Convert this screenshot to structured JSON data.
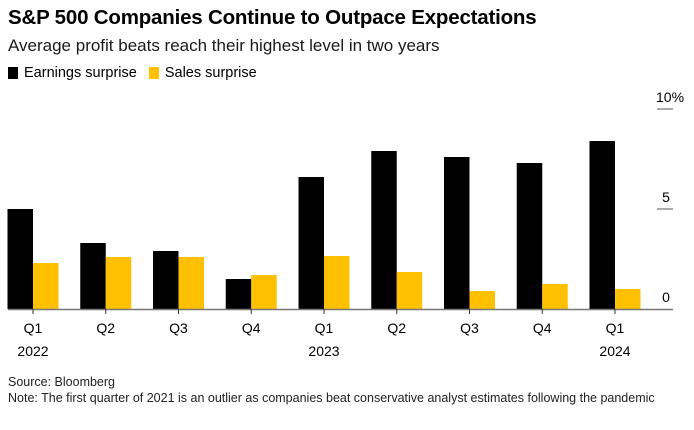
{
  "chart_data": {
    "type": "bar",
    "title": "S&P 500 Companies Continue to Outpace Expectations",
    "subtitle": "Average profit beats reach their highest level in two years",
    "categories": [
      "Q1 2022",
      "Q2 2022",
      "Q3 2022",
      "Q4 2022",
      "Q1 2023",
      "Q2 2023",
      "Q3 2023",
      "Q4 2023",
      "Q1 2024"
    ],
    "tick_labels": [
      {
        "quarter": "Q1",
        "year": "2022"
      },
      {
        "quarter": "Q2",
        "year": ""
      },
      {
        "quarter": "Q3",
        "year": ""
      },
      {
        "quarter": "Q4",
        "year": ""
      },
      {
        "quarter": "Q1",
        "year": "2023"
      },
      {
        "quarter": "Q2",
        "year": ""
      },
      {
        "quarter": "Q3",
        "year": ""
      },
      {
        "quarter": "Q4",
        "year": ""
      },
      {
        "quarter": "Q1",
        "year": "2024"
      }
    ],
    "series": [
      {
        "name": "Earnings surprise",
        "color": "#000000",
        "values": [
          5.0,
          3.3,
          2.9,
          1.5,
          6.6,
          7.9,
          7.6,
          7.3,
          8.4
        ]
      },
      {
        "name": "Sales surprise",
        "color": "#FFC000",
        "values": [
          2.3,
          2.6,
          2.6,
          1.7,
          2.65,
          1.85,
          0.9,
          1.25,
          1.0
        ]
      }
    ],
    "xlabel": "",
    "ylabel": "",
    "ylim": [
      0,
      10
    ],
    "yticks": [
      {
        "value": 0,
        "label": "0"
      },
      {
        "value": 5,
        "label": "5"
      },
      {
        "value": 10,
        "label": "10%"
      }
    ],
    "y_axis_position": "right",
    "grid": false,
    "legend_position": "top-left"
  },
  "legend": [
    {
      "label": "Earnings surprise",
      "color": "#000000"
    },
    {
      "label": "Sales surprise",
      "color": "#FFC000"
    }
  ],
  "footer": {
    "source": "Source: Bloomberg",
    "note": "Note: The first quarter of 2021 is an outlier as companies beat conservative analyst estimates following the pandemic"
  }
}
